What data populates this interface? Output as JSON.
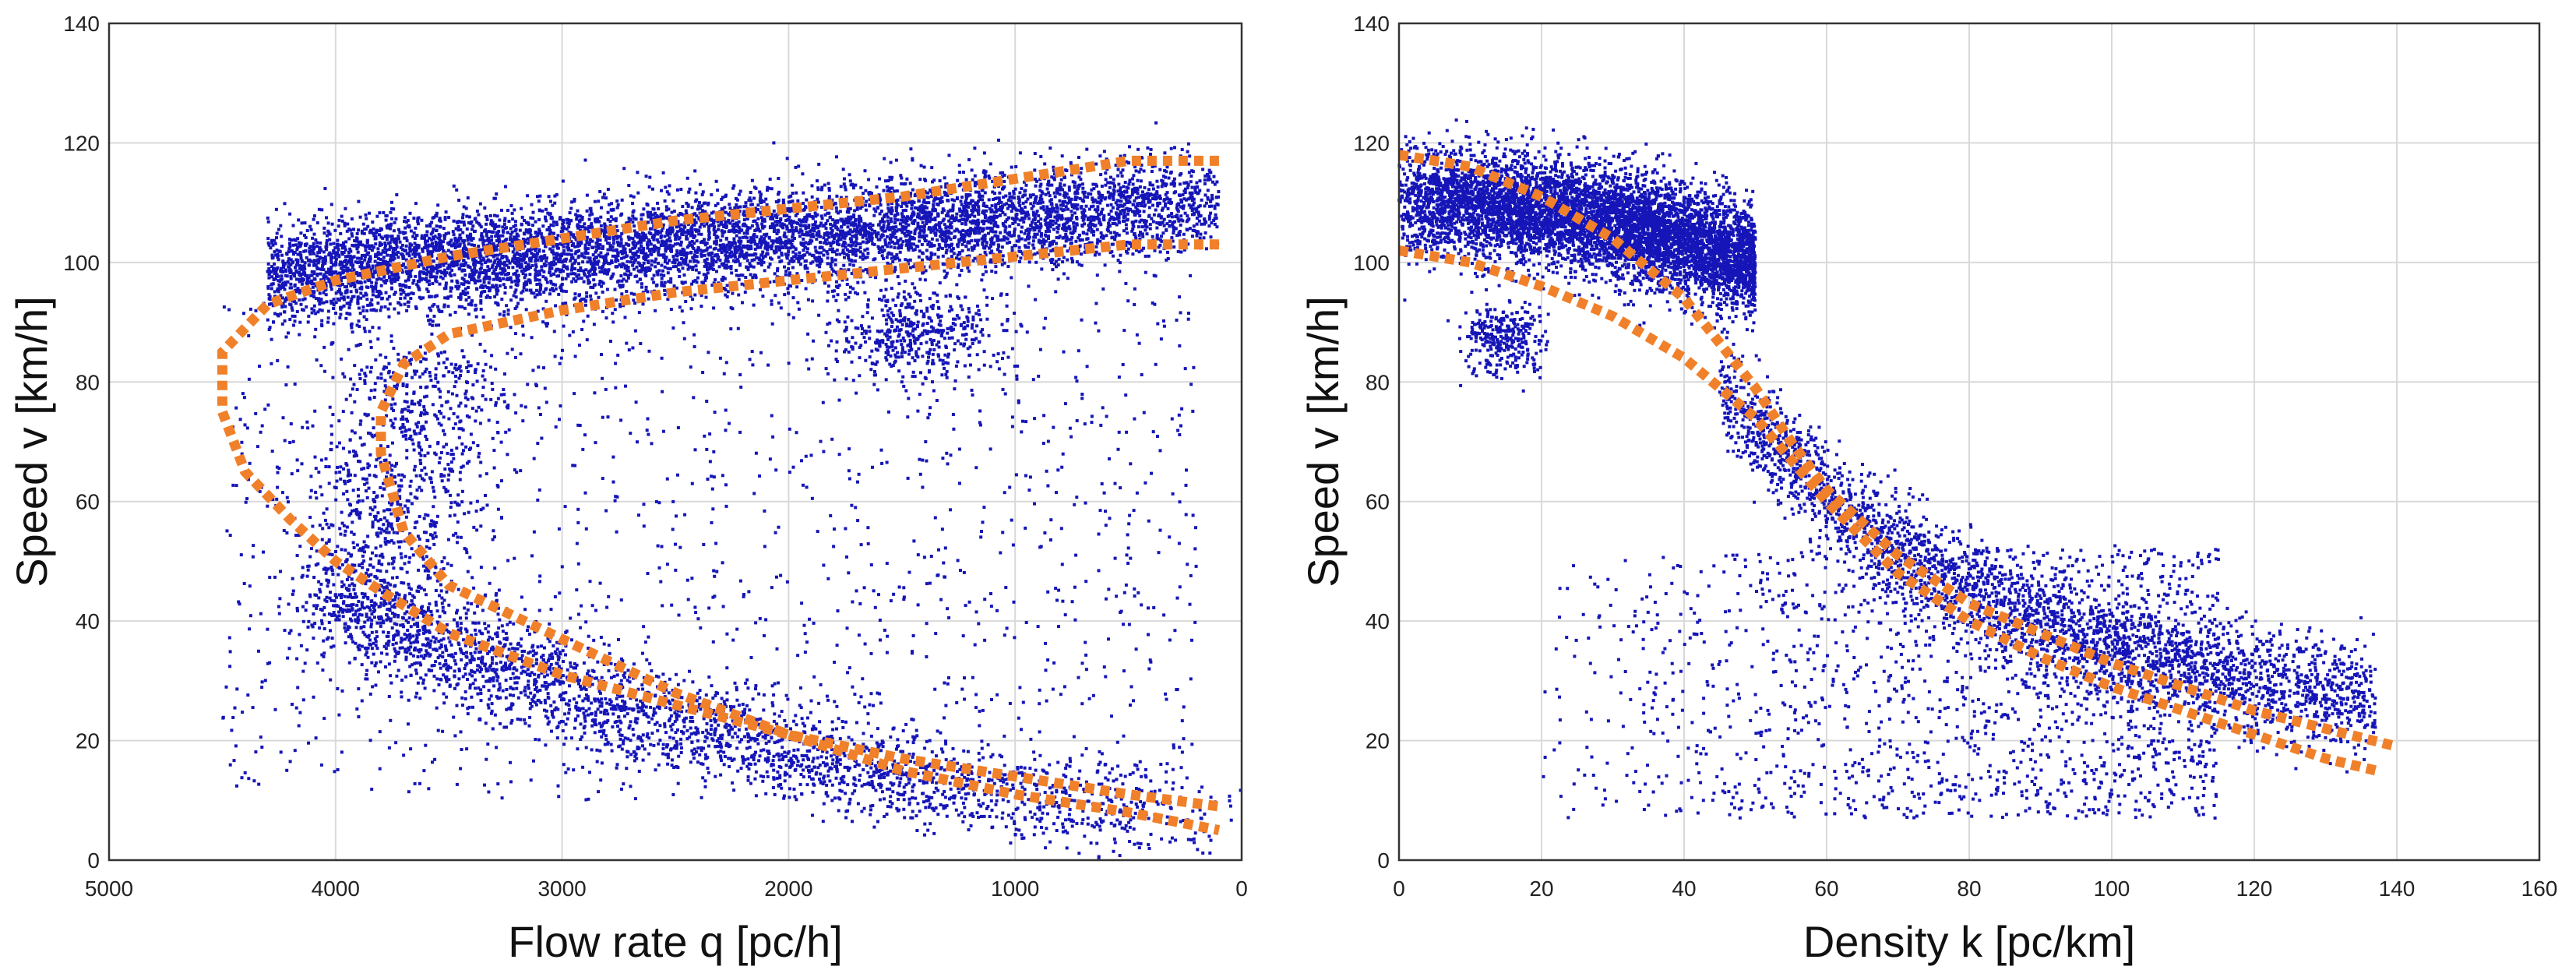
{
  "chart_data": [
    {
      "type": "scatter",
      "title": "",
      "xlabel": "Flow rate q [pc/h]",
      "ylabel": "Speed v [km/h]",
      "xlim": [
        5000,
        0
      ],
      "ylim": [
        0,
        140
      ],
      "x_reversed": true,
      "xticks": [
        "5000",
        "4000",
        "3000",
        "2000",
        "1000",
        "0"
      ],
      "yticks": [
        "0",
        "20",
        "40",
        "60",
        "80",
        "100",
        "120",
        "140"
      ],
      "grid": true,
      "colors": {
        "points": "#1515b8",
        "bands": "#f0802a"
      },
      "point_clusters": [
        {
          "name": "free-flow band",
          "x_range": [
            100,
            4300
          ],
          "v_range": [
            85,
            117
          ]
        },
        {
          "name": "congested branch",
          "q_range": [
            100,
            4000
          ],
          "v_range": [
            5,
            75
          ]
        },
        {
          "name": "scattered transition points",
          "q_range": [
            200,
            4600
          ],
          "v_range": [
            8,
            100
          ]
        }
      ],
      "series": [
        {
          "name": "upper envelope",
          "x": [
            100,
            500,
            1000,
            1500,
            2000,
            2500,
            3000,
            3500,
            4000,
            4300,
            4500,
            4500,
            4400,
            4200,
            4000,
            3800,
            3500,
            3000,
            2500,
            2000,
            1500,
            1000,
            500,
            100
          ],
          "y": [
            117,
            117,
            114,
            111,
            109,
            107,
            104,
            101,
            97,
            93,
            85,
            75,
            65,
            57,
            50,
            45,
            38,
            31,
            26,
            21,
            17,
            14,
            11,
            9
          ]
        },
        {
          "name": "lower envelope",
          "x": [
            100,
            500,
            1000,
            1500,
            2000,
            2500,
            3000,
            3500,
            3700,
            3800,
            3800,
            3700,
            3500,
            3000,
            2500,
            2000,
            1500,
            1000,
            500,
            100
          ],
          "y": [
            103,
            103,
            101,
            99,
            97,
            95,
            92,
            88,
            83,
            75,
            68,
            55,
            46,
            37,
            28,
            21,
            15,
            11,
            8,
            5
          ]
        }
      ]
    },
    {
      "type": "scatter",
      "title": "",
      "xlabel": "Density k [pc/km]",
      "ylabel": "Speed v [km/h]",
      "xlim": [
        0,
        160
      ],
      "ylim": [
        0,
        140
      ],
      "xticks": [
        "0",
        "20",
        "40",
        "60",
        "80",
        "100",
        "120",
        "140",
        "160"
      ],
      "yticks": [
        "0",
        "20",
        "40",
        "60",
        "80",
        "100",
        "120",
        "140"
      ],
      "grid": true,
      "colors": {
        "points": "#1515b8",
        "bands": "#f0802a"
      },
      "point_clusters": [
        {
          "name": "free-flow cluster",
          "k_range": [
            0,
            50
          ],
          "v_range": [
            80,
            120
          ]
        },
        {
          "name": "congested branch",
          "k_range": [
            45,
            137
          ],
          "v_range": [
            10,
            70
          ]
        },
        {
          "name": "low-speed scatter",
          "k_range": [
            5,
            110
          ],
          "v_range": [
            6,
            50
          ]
        }
      ],
      "series": [
        {
          "name": "upper envelope",
          "x": [
            0,
            5,
            10,
            20,
            30,
            40,
            50,
            55,
            60,
            70,
            80,
            90,
            100,
            110,
            120,
            130,
            140
          ],
          "y": [
            118,
            117,
            116,
            111,
            104,
            94,
            79,
            70,
            62,
            51,
            43,
            38,
            33,
            29,
            25,
            22,
            19
          ]
        },
        {
          "name": "lower envelope",
          "x": [
            0,
            5,
            10,
            20,
            30,
            40,
            50,
            60,
            70,
            80,
            90,
            100,
            110,
            120,
            130,
            137
          ],
          "y": [
            102,
            101,
            100,
            96,
            91,
            84,
            74,
            60,
            48,
            40,
            34,
            29,
            25,
            21,
            17,
            15
          ]
        }
      ]
    }
  ]
}
